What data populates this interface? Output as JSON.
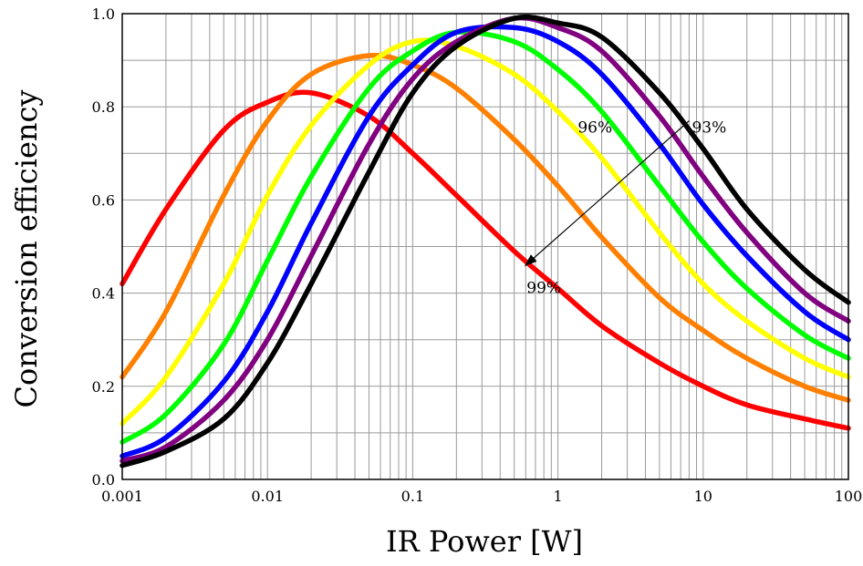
{
  "chart_data": {
    "type": "line",
    "xlabel": "IR Power [W]",
    "ylabel": "Conversion efficiency",
    "x_scale": "log",
    "xlim": [
      0.001,
      100
    ],
    "ylim": [
      0,
      1.0
    ],
    "grid": true,
    "x_ticks": [
      "0.001",
      "0.01",
      "0.1",
      "1",
      "10",
      "100"
    ],
    "y_ticks": [
      "0.0",
      "0.2",
      "0.4",
      "0.6",
      "0.8",
      "1.0"
    ],
    "x": [
      0.001,
      0.002,
      0.005,
      0.01,
      0.02,
      0.05,
      0.1,
      0.2,
      0.5,
      1,
      2,
      5,
      10,
      20,
      50,
      100
    ],
    "series": [
      {
        "color": "#ff0000",
        "values": [
          0.42,
          0.58,
          0.75,
          0.81,
          0.83,
          0.78,
          0.7,
          0.61,
          0.49,
          0.41,
          0.33,
          0.25,
          0.2,
          0.16,
          0.13,
          0.11
        ]
      },
      {
        "color": "#ff8000",
        "values": [
          0.22,
          0.36,
          0.61,
          0.77,
          0.87,
          0.91,
          0.89,
          0.84,
          0.73,
          0.63,
          0.52,
          0.39,
          0.32,
          0.26,
          0.2,
          0.17
        ]
      },
      {
        "color": "#ffff00",
        "values": [
          0.12,
          0.22,
          0.42,
          0.61,
          0.76,
          0.89,
          0.94,
          0.93,
          0.87,
          0.79,
          0.69,
          0.53,
          0.42,
          0.34,
          0.26,
          0.22
        ]
      },
      {
        "color": "#00ff00",
        "values": [
          0.08,
          0.14,
          0.29,
          0.47,
          0.65,
          0.84,
          0.92,
          0.96,
          0.94,
          0.88,
          0.79,
          0.63,
          0.51,
          0.41,
          0.31,
          0.26
        ]
      },
      {
        "color": "#0000ff",
        "values": [
          0.05,
          0.09,
          0.21,
          0.36,
          0.55,
          0.78,
          0.89,
          0.96,
          0.97,
          0.94,
          0.87,
          0.72,
          0.59,
          0.48,
          0.36,
          0.3
        ]
      },
      {
        "color": "#800080",
        "values": [
          0.04,
          0.07,
          0.17,
          0.3,
          0.48,
          0.72,
          0.86,
          0.94,
          0.99,
          0.97,
          0.92,
          0.78,
          0.65,
          0.53,
          0.4,
          0.34
        ]
      },
      {
        "color": "#000000",
        "values": [
          0.03,
          0.06,
          0.13,
          0.25,
          0.42,
          0.66,
          0.83,
          0.93,
          0.99,
          0.98,
          0.95,
          0.83,
          0.71,
          0.58,
          0.45,
          0.38
        ]
      }
    ],
    "annotations": [
      {
        "text": "96%",
        "x": 1.8,
        "y": 0.745
      },
      {
        "text": "93%",
        "x": 11,
        "y": 0.745
      },
      {
        "text": "99%",
        "x": 0.8,
        "y": 0.4
      }
    ],
    "arrow": {
      "from": [
        8.0,
        0.77
      ],
      "to": [
        0.6,
        0.46
      ]
    }
  }
}
